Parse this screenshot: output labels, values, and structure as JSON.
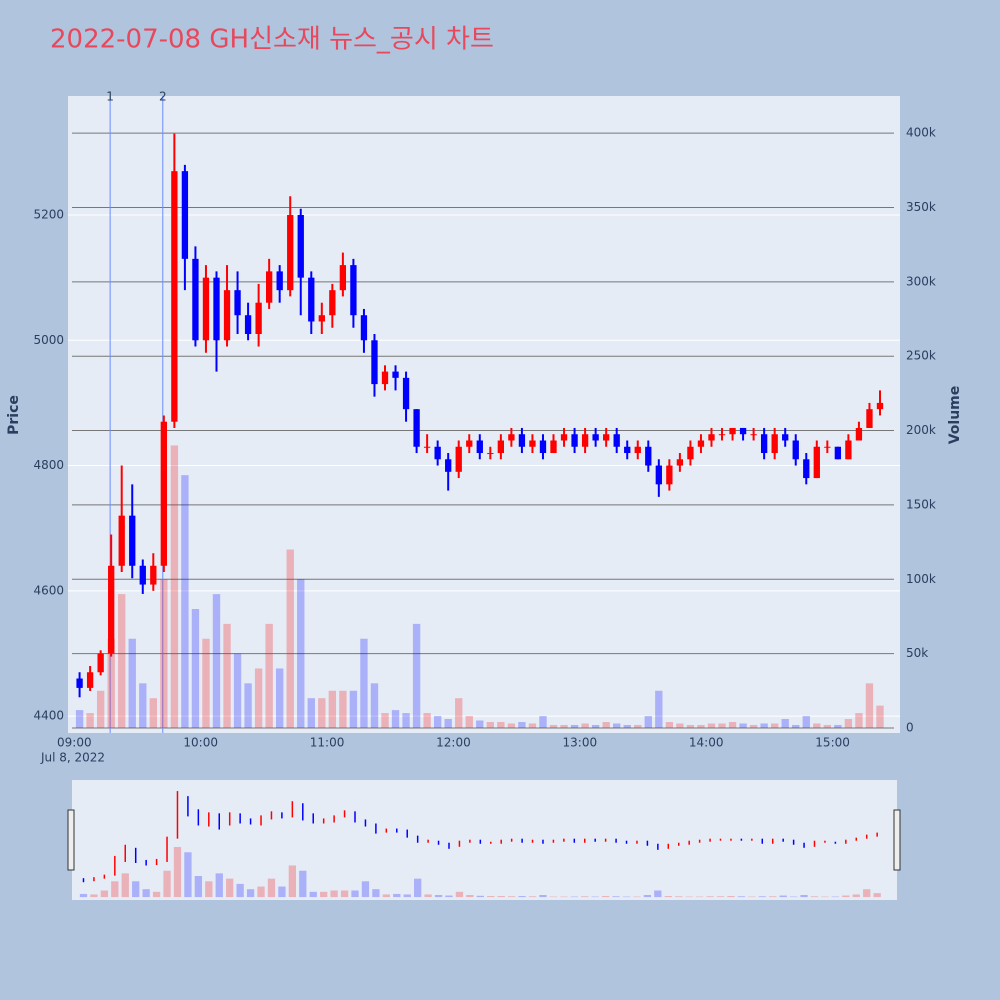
{
  "chart_data": {
    "type": "candlestick",
    "title": "2022-07-08 GH신소재 뉴스_공시 차트",
    "yaxis_title": "Price",
    "y2axis_title": "Volume",
    "date_label": "Jul 8, 2022",
    "increasing_color": "#ff0000",
    "decreasing_color": "#0000ff",
    "grid": true,
    "xlim": [
      "08:57",
      "15:32"
    ],
    "xticks": [
      "09:00",
      "10:00",
      "11:00",
      "12:00",
      "13:00",
      "14:00",
      "15:00"
    ],
    "ylim": [
      4373,
      5390
    ],
    "yticks": [
      4400,
      4600,
      4800,
      5000,
      5200
    ],
    "y2lim": [
      -3400,
      425000
    ],
    "y2ticks": [
      0,
      {
        "value": 50000,
        "label": "50k"
      },
      {
        "value": 100000,
        "label": "100k"
      },
      {
        "value": 150000,
        "label": "150k"
      },
      {
        "value": 200000,
        "label": "200k"
      },
      {
        "value": 250000,
        "label": "250k"
      },
      {
        "value": 300000,
        "label": "300k"
      },
      {
        "value": 350000,
        "label": "350k"
      },
      {
        "value": 400000,
        "label": "400k"
      }
    ],
    "annotations": [
      {
        "text": "1",
        "x": "09:17"
      },
      {
        "text": "2",
        "x": "09:42"
      }
    ],
    "x": [
      "09:00",
      "09:05",
      "09:10",
      "09:15",
      "09:20",
      "09:25",
      "09:30",
      "09:35",
      "09:40",
      "09:45",
      "09:50",
      "09:55",
      "10:00",
      "10:05",
      "10:10",
      "10:15",
      "10:20",
      "10:25",
      "10:30",
      "10:35",
      "10:40",
      "10:45",
      "10:50",
      "10:55",
      "11:00",
      "11:05",
      "11:10",
      "11:15",
      "11:20",
      "11:25",
      "11:30",
      "11:35",
      "11:40",
      "11:45",
      "11:50",
      "11:55",
      "12:00",
      "12:05",
      "12:10",
      "12:15",
      "12:20",
      "12:25",
      "12:30",
      "12:35",
      "12:40",
      "12:45",
      "12:50",
      "12:55",
      "13:00",
      "13:05",
      "13:10",
      "13:15",
      "13:20",
      "13:25",
      "13:30",
      "13:35",
      "13:40",
      "13:45",
      "13:50",
      "13:55",
      "14:00",
      "14:05",
      "14:10",
      "14:15",
      "14:20",
      "14:25",
      "14:30",
      "14:35",
      "14:40",
      "14:45",
      "14:50",
      "14:55",
      "15:00",
      "15:05",
      "15:10",
      "15:15",
      "15:20"
    ],
    "open": [
      4460,
      4445,
      4470,
      4500,
      4640,
      4720,
      4640,
      4610,
      4640,
      4870,
      5270,
      5130,
      5000,
      5100,
      5000,
      5080,
      5040,
      5010,
      5060,
      5110,
      5080,
      5200,
      5100,
      5030,
      5040,
      5080,
      5120,
      5040,
      5000,
      4930,
      4950,
      4940,
      4890,
      4830,
      4830,
      4810,
      4790,
      4830,
      4840,
      4820,
      4820,
      4840,
      4850,
      4830,
      4840,
      4820,
      4840,
      4850,
      4830,
      4850,
      4840,
      4850,
      4830,
      4820,
      4830,
      4800,
      4770,
      4800,
      4810,
      4830,
      4840,
      4850,
      4850,
      4860,
      4850,
      4850,
      4820,
      4850,
      4840,
      4810,
      4780,
      4830,
      4830,
      4810,
      4840,
      4860,
      4890
    ],
    "high": [
      4470,
      4480,
      4505,
      4690,
      4800,
      4770,
      4650,
      4660,
      4880,
      5330,
      5280,
      5150,
      5120,
      5110,
      5120,
      5110,
      5060,
      5090,
      5130,
      5120,
      5230,
      5210,
      5110,
      5060,
      5090,
      5140,
      5130,
      5050,
      5010,
      4960,
      4960,
      4950,
      4890,
      4850,
      4840,
      4820,
      4840,
      4850,
      4850,
      4830,
      4850,
      4860,
      4860,
      4850,
      4850,
      4850,
      4860,
      4860,
      4860,
      4860,
      4860,
      4860,
      4840,
      4840,
      4840,
      4810,
      4810,
      4820,
      4840,
      4850,
      4860,
      4860,
      4860,
      4860,
      4860,
      4860,
      4860,
      4860,
      4850,
      4820,
      4840,
      4840,
      4830,
      4850,
      4870,
      4900,
      4920
    ],
    "low": [
      4430,
      4440,
      4465,
      4495,
      4630,
      4620,
      4595,
      4600,
      4630,
      4860,
      5080,
      4990,
      4980,
      4950,
      4990,
      5010,
      5000,
      4990,
      5050,
      5060,
      5070,
      5040,
      5010,
      5010,
      5020,
      5070,
      5020,
      4980,
      4910,
      4920,
      4920,
      4870,
      4820,
      4820,
      4800,
      4760,
      4780,
      4820,
      4810,
      4810,
      4810,
      4830,
      4820,
      4820,
      4810,
      4820,
      4830,
      4820,
      4820,
      4830,
      4830,
      4820,
      4810,
      4810,
      4790,
      4750,
      4760,
      4790,
      4800,
      4820,
      4830,
      4840,
      4840,
      4840,
      4840,
      4810,
      4810,
      4830,
      4800,
      4770,
      4780,
      4820,
      4810,
      4810,
      4840,
      4860,
      4880
    ],
    "close": [
      4445,
      4470,
      4500,
      4640,
      4720,
      4640,
      4610,
      4640,
      4870,
      5270,
      5130,
      5000,
      5100,
      5000,
      5080,
      5040,
      5010,
      5060,
      5110,
      5080,
      5200,
      5100,
      5030,
      5040,
      5080,
      5120,
      5040,
      5000,
      4930,
      4950,
      4940,
      4890,
      4830,
      4830,
      4810,
      4790,
      4830,
      4840,
      4820,
      4820,
      4840,
      4850,
      4830,
      4840,
      4820,
      4840,
      4850,
      4830,
      4850,
      4840,
      4850,
      4830,
      4820,
      4830,
      4800,
      4770,
      4800,
      4810,
      4830,
      4840,
      4850,
      4850,
      4860,
      4850,
      4850,
      4820,
      4850,
      4840,
      4810,
      4780,
      4830,
      4830,
      4810,
      4840,
      4860,
      4890,
      4900
    ],
    "volume": [
      12000,
      10000,
      25000,
      60000,
      90000,
      60000,
      30000,
      20000,
      100000,
      190000,
      170000,
      80000,
      60000,
      90000,
      70000,
      50000,
      30000,
      40000,
      70000,
      40000,
      120000,
      100000,
      20000,
      20000,
      25000,
      25000,
      25000,
      60000,
      30000,
      10000,
      12000,
      10000,
      70000,
      10000,
      8000,
      6000,
      20000,
      8000,
      5000,
      4000,
      4000,
      3000,
      4000,
      3000,
      8000,
      2000,
      2000,
      2000,
      3000,
      2000,
      4000,
      3000,
      2000,
      2000,
      8000,
      25000,
      4000,
      3000,
      2000,
      2000,
      3000,
      3000,
      4000,
      3000,
      2000,
      3000,
      3000,
      6000,
      2000,
      8000,
      3000,
      2000,
      2000,
      6000,
      10000,
      30000,
      15000
    ]
  }
}
